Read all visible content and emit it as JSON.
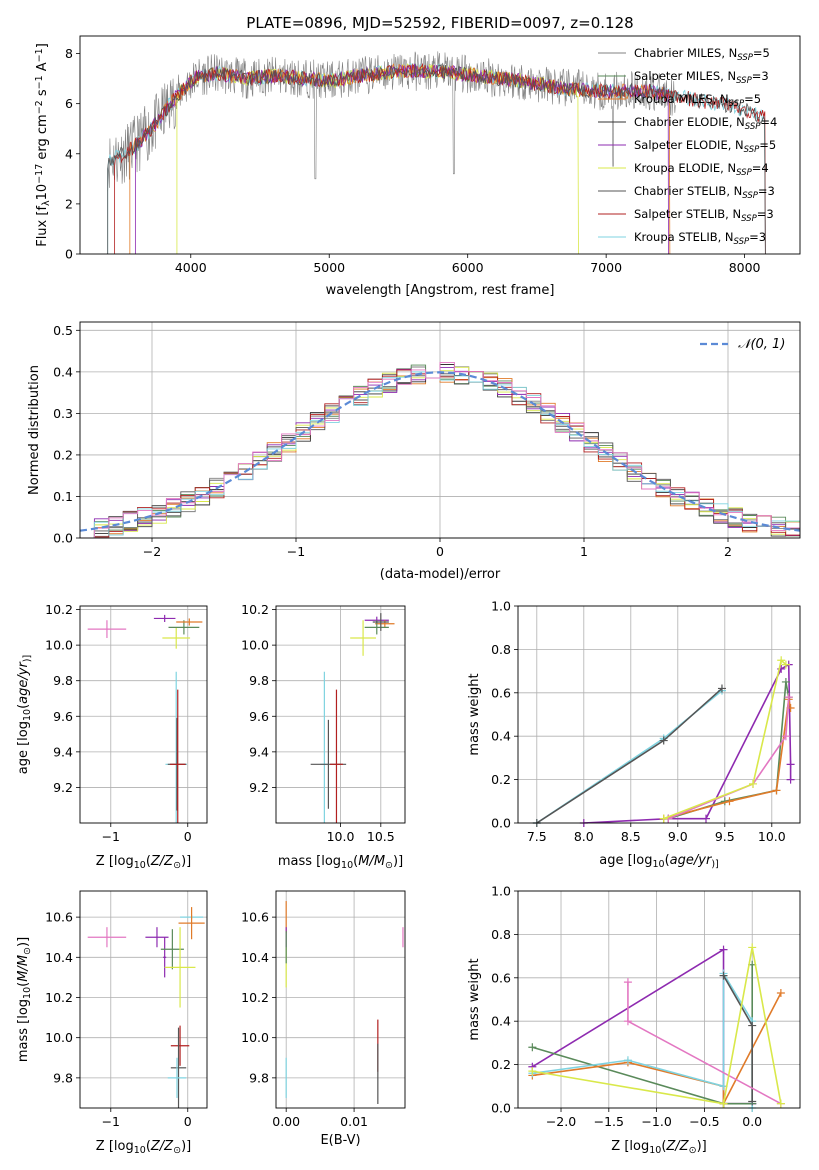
{
  "chart_data": [
    {
      "type": "line",
      "title": "PLATE=0896, MJD=52592, FIBERID=0097, z=0.128",
      "xlabel": "wavelength [Angstrom, rest frame]",
      "ylabel": "Flux [f$_\\lambda$10$^{-17}$ erg cm$^{-2}$ s$^{-1}$ A$^{-1}$]",
      "ylabel_parts": [
        "Flux [f",
        "λ",
        "10",
        "−17",
        " erg cm",
        "−2",
        " s",
        "−1",
        " A",
        "−1",
        "]"
      ],
      "xlim": [
        3200,
        8400
      ],
      "ylim": [
        0,
        8.7
      ],
      "xticks": [
        "4000",
        "5000",
        "6000",
        "7000",
        "8000"
      ],
      "xtick_values": [
        4000,
        5000,
        6000,
        7000,
        8000
      ],
      "yticks": [
        "0",
        "2",
        "4",
        "6",
        "8"
      ],
      "ytick_values": [
        0,
        2,
        4,
        6,
        8
      ],
      "grid": false,
      "legend_position": "right",
      "series": [
        {
          "name": "Chabrier MILES, N$_{SSP}$=5",
          "label": "Chabrier MILES, N",
          "sub": "SSP",
          "tail": "=5",
          "color": "#808080"
        },
        {
          "name": "Salpeter MILES, N$_{SSP}$=3",
          "label": "Salpeter MILES, N",
          "sub": "SSP",
          "tail": "=3",
          "color": "#5a8a5a"
        },
        {
          "name": "Kroupa MILES, N$_{SSP}$=5",
          "label": "Kroupa MILES, N",
          "sub": "SSP",
          "tail": "=5",
          "color": "#e07b2a"
        },
        {
          "name": "Chabrier ELODIE, N$_{SSP}$=4",
          "label": "Chabrier ELODIE, N",
          "sub": "SSP",
          "tail": "=4",
          "color": "#333333"
        },
        {
          "name": "Salpeter ELODIE, N$_{SSP}$=5",
          "label": "Salpeter ELODIE, N",
          "sub": "SSP",
          "tail": "=5",
          "color": "#8e2bb0"
        },
        {
          "name": "Kroupa ELODIE, N$_{SSP}$=4",
          "label": "Kroupa ELODIE, N",
          "sub": "SSP",
          "tail": "=4",
          "color": "#d9e84a"
        },
        {
          "name": "Chabrier STELIB, N$_{SSP}$=3",
          "label": "Chabrier STELIB, N",
          "sub": "SSP",
          "tail": "=3",
          "color": "#555555"
        },
        {
          "name": "Salpeter STELIB, N$_{SSP}$=3",
          "label": "Salpeter STELIB, N",
          "sub": "SSP",
          "tail": "=3",
          "color": "#b22020"
        },
        {
          "name": "Kroupa STELIB, N$_{SSP}$=3",
          "label": "Kroupa STELIB, N",
          "sub": "SSP",
          "tail": "=3",
          "color": "#7fd3e0"
        }
      ],
      "spectrum_anchors": {
        "x": [
          3400,
          3550,
          3650,
          3750,
          3850,
          3950,
          4050,
          4200,
          4400,
          4600,
          4850,
          5000,
          5200,
          5500,
          5800,
          6100,
          6400,
          6700,
          7000,
          7300,
          7500,
          7700,
          7900,
          8050,
          8150
        ],
        "y": [
          3.7,
          4.1,
          4.6,
          5.2,
          6.0,
          6.6,
          7.1,
          7.2,
          7.0,
          7.1,
          7.0,
          6.9,
          7.1,
          7.3,
          7.3,
          7.1,
          6.9,
          6.6,
          6.5,
          6.5,
          6.3,
          6.1,
          5.9,
          5.7,
          5.4
        ]
      }
    },
    {
      "type": "line",
      "title": "",
      "xlabel": "(data-model)/error",
      "ylabel": "Normed distribution",
      "xlim": [
        -2.5,
        2.5
      ],
      "ylim": [
        0,
        0.52
      ],
      "xticks": [
        "−2",
        "−1",
        "0",
        "1",
        "2"
      ],
      "xtick_values": [
        -2,
        -1,
        0,
        1,
        2
      ],
      "yticks": [
        "0.0",
        "0.1",
        "0.2",
        "0.3",
        "0.4",
        "0.5"
      ],
      "ytick_values": [
        0,
        0.1,
        0.2,
        0.3,
        0.4,
        0.5
      ],
      "grid": true,
      "legend_position": "top-right",
      "legend": "𝒩(0, 1)",
      "gaussian": {
        "mean": 0,
        "sigma": 1,
        "color": "#5b8ad6"
      },
      "bin_width": 0.1
    },
    {
      "type": "scatter",
      "xlabel": "Z [log$_{10}$(Z/Z$_\\odot$)]",
      "xlabel_parts": [
        "Z [log",
        "10",
        "(",
        "Z/Z",
        "⊙",
        ")]"
      ],
      "ylabel": "age  [log$_{10}$(age/yr)]",
      "ylabel_parts": [
        "age  [log",
        "10",
        "(",
        "age/yr",
        ")]"
      ],
      "xlim": [
        -1.4,
        0.25
      ],
      "ylim": [
        9.0,
        10.22
      ],
      "xticks": [
        "−1",
        "0"
      ],
      "xtick_values": [
        -1,
        0
      ],
      "yticks": [
        "9.2",
        "9.4",
        "9.6",
        "9.8",
        "10.0",
        "10.2"
      ],
      "ytick_values": [
        9.2,
        9.4,
        9.6,
        9.8,
        10.0,
        10.2
      ],
      "grid": true,
      "points": [
        {
          "x": -1.05,
          "y": 10.09,
          "ex": 0.25,
          "ey": 0.05,
          "c": "#e377c2"
        },
        {
          "x": -0.3,
          "y": 10.15,
          "ex": 0.14,
          "ey": 0.02,
          "c": "#8e2bb0"
        },
        {
          "x": -0.15,
          "y": 10.04,
          "ex": 0.18,
          "ey": 0.06,
          "c": "#d9e84a"
        },
        {
          "x": -0.05,
          "y": 10.1,
          "ex": 0.2,
          "ey": 0.04,
          "c": "#5a8a5a"
        },
        {
          "x": 0.02,
          "y": 10.13,
          "ex": 0.17,
          "ey": 0.02,
          "c": "#e07b2a"
        },
        {
          "x": -0.15,
          "y": 9.33,
          "ex": 0.14,
          "ey": 0.52,
          "c": "#7fd3e0"
        },
        {
          "x": -0.14,
          "y": 9.33,
          "ex": 0.12,
          "ey": 0.26,
          "c": "#555555"
        },
        {
          "x": -0.13,
          "y": 9.33,
          "ex": 0.1,
          "ey": 0.42,
          "c": "#b22020"
        }
      ]
    },
    {
      "type": "scatter",
      "xlabel": "mass [log$_{10}$(M/M$_\\odot$)]",
      "xlabel_parts": [
        "mass [log",
        "10",
        "(",
        "M/M",
        "⊙",
        ")]"
      ],
      "ylabel": "",
      "xlim": [
        9.2,
        10.8
      ],
      "ylim": [
        9.0,
        10.22
      ],
      "xticks": [
        "10.0",
        "10.5"
      ],
      "xtick_values": [
        10.0,
        10.5
      ],
      "yticks": [
        "9.2",
        "9.4",
        "9.6",
        "9.8",
        "10.0",
        "10.2"
      ],
      "ytick_values": [
        9.2,
        9.4,
        9.6,
        9.8,
        10.0,
        10.2
      ],
      "grid": true,
      "points": [
        {
          "x": 10.45,
          "y": 10.14,
          "ex": 0.15,
          "ey": 0.02,
          "c": "#8e2bb0"
        },
        {
          "x": 10.55,
          "y": 10.12,
          "ex": 0.12,
          "ey": 0.02,
          "c": "#e07b2a"
        },
        {
          "x": 10.45,
          "y": 10.1,
          "ex": 0.15,
          "ey": 0.04,
          "c": "#5a8a5a"
        },
        {
          "x": 10.28,
          "y": 10.04,
          "ex": 0.16,
          "ey": 0.1,
          "c": "#d9e84a"
        },
        {
          "x": 10.5,
          "y": 10.13,
          "ex": 0.1,
          "ey": 0.05,
          "c": "#555555"
        },
        {
          "x": 9.8,
          "y": 9.33,
          "ex": 0.05,
          "ey": 0.52,
          "c": "#7fd3e0"
        },
        {
          "x": 9.85,
          "y": 9.33,
          "ex": 0.22,
          "ey": 0.25,
          "c": "#555555"
        },
        {
          "x": 9.95,
          "y": 9.33,
          "ex": 0.08,
          "ey": 0.42,
          "c": "#b22020"
        }
      ]
    },
    {
      "type": "line",
      "xlabel": "age  [log$_{10}$(age/yr)]",
      "xlabel_parts": [
        "age  [log",
        "10",
        "(",
        "age/yr",
        ")]"
      ],
      "ylabel": "mass weight",
      "xlim": [
        7.3,
        10.3
      ],
      "ylim": [
        0,
        1.0
      ],
      "xticks": [
        "7.5",
        "8.0",
        "8.5",
        "9.0",
        "9.5",
        "10.0"
      ],
      "xtick_values": [
        7.5,
        8.0,
        8.5,
        9.0,
        9.5,
        10.0
      ],
      "yticks": [
        "0.0",
        "0.2",
        "0.4",
        "0.6",
        "0.8",
        "1.0"
      ],
      "ytick_values": [
        0,
        0.2,
        0.4,
        0.6,
        0.8,
        1.0
      ],
      "grid": true,
      "series": [
        {
          "color": "#7fd3e0",
          "x": [
            7.5,
            8.85,
            9.47
          ],
          "y": [
            0.0,
            0.39,
            0.61
          ]
        },
        {
          "color": "#555555",
          "x": [
            7.5,
            8.85,
            9.47
          ],
          "y": [
            0.0,
            0.38,
            0.62
          ]
        },
        {
          "color": "#8e2bb0",
          "x": [
            8.0,
            8.9,
            9.3,
            10.1,
            10.18,
            10.2,
            10.2
          ],
          "y": [
            0.0,
            0.02,
            0.02,
            0.71,
            0.73,
            0.27,
            0.2
          ]
        },
        {
          "color": "#5a8a5a",
          "x": [
            8.9,
            9.5,
            10.05,
            10.15,
            10.18
          ],
          "y": [
            0.02,
            0.1,
            0.15,
            0.65,
            0.58
          ]
        },
        {
          "color": "#e07b2a",
          "x": [
            8.85,
            9.55,
            10.05,
            10.18,
            10.2
          ],
          "y": [
            0.02,
            0.1,
            0.15,
            0.57,
            0.53
          ]
        },
        {
          "color": "#e377c2",
          "x": [
            8.9,
            9.8,
            10.15,
            10.18
          ],
          "y": [
            0.02,
            0.18,
            0.4,
            0.58
          ]
        },
        {
          "color": "#d9e84a",
          "x": [
            8.85,
            9.8,
            10.1,
            10.15
          ],
          "y": [
            0.02,
            0.18,
            0.75,
            0.73
          ]
        }
      ]
    },
    {
      "type": "scatter",
      "xlabel": "Z [log$_{10}$(Z/Z$_\\odot$)]",
      "xlabel_parts": [
        "Z [log",
        "10",
        "(",
        "Z/Z",
        "⊙",
        ")]"
      ],
      "ylabel": "mass [log$_{10}$(M/M$_\\odot$)]",
      "ylabel_parts": [
        "mass [log",
        "10",
        "(",
        "M/M",
        "⊙",
        ")]"
      ],
      "xlim": [
        -1.4,
        0.25
      ],
      "ylim": [
        9.65,
        10.73
      ],
      "xticks": [
        "−1",
        "0"
      ],
      "xtick_values": [
        -1,
        0
      ],
      "yticks": [
        "9.8",
        "10.0",
        "10.2",
        "10.4",
        "10.6"
      ],
      "ytick_values": [
        9.8,
        10.0,
        10.2,
        10.4,
        10.6
      ],
      "grid": true,
      "points": [
        {
          "x": -1.05,
          "y": 10.5,
          "ex": 0.25,
          "ey": 0.05,
          "c": "#e377c2"
        },
        {
          "x": -0.4,
          "y": 10.5,
          "ex": 0.15,
          "ey": 0.05,
          "c": "#8e2bb0"
        },
        {
          "x": -0.3,
          "y": 10.4,
          "ex": 0.02,
          "ey": 0.1,
          "c": "#8e2bb0"
        },
        {
          "x": -0.2,
          "y": 10.44,
          "ex": 0.15,
          "ey": 0.1,
          "c": "#5a8a5a"
        },
        {
          "x": -0.1,
          "y": 10.35,
          "ex": 0.2,
          "ey": 0.2,
          "c": "#d9e84a"
        },
        {
          "x": 0.05,
          "y": 10.6,
          "ex": 0.15,
          "ey": 0.01,
          "c": "#7fd3e0"
        },
        {
          "x": 0.05,
          "y": 10.57,
          "ex": 0.17,
          "ey": 0.08,
          "c": "#e07b2a"
        },
        {
          "x": -0.1,
          "y": 9.96,
          "ex": 0.12,
          "ey": 0.1,
          "c": "#b22020"
        },
        {
          "x": -0.12,
          "y": 9.85,
          "ex": 0.1,
          "ey": 0.2,
          "c": "#555555"
        },
        {
          "x": -0.14,
          "y": 9.8,
          "ex": 0.12,
          "ey": 0.1,
          "c": "#7fd3e0"
        }
      ]
    },
    {
      "type": "scatter",
      "xlabel": "E(B-V)",
      "ylabel": "",
      "xlim": [
        -0.0015,
        0.0175
      ],
      "ylim": [
        9.65,
        10.73
      ],
      "xticks": [
        "0.00",
        "0.01"
      ],
      "xtick_values": [
        0.0,
        0.01
      ],
      "yticks": [
        "9.8",
        "10.0",
        "10.2",
        "10.4",
        "10.6"
      ],
      "ytick_values": [
        9.8,
        10.0,
        10.2,
        10.4,
        10.6
      ],
      "grid": true,
      "points": [
        {
          "x": 0.0,
          "y": 10.6,
          "ex": 0.0,
          "ey": 0.08,
          "c": "#e07b2a"
        },
        {
          "x": 0.0,
          "y": 10.5,
          "ex": 0.0,
          "ey": 0.05,
          "c": "#8e2bb0"
        },
        {
          "x": 0.0,
          "y": 10.35,
          "ex": 0.0,
          "ey": 0.1,
          "c": "#d9e84a"
        },
        {
          "x": 0.0,
          "y": 9.8,
          "ex": 0.0,
          "ey": 0.1,
          "c": "#7fd3e0"
        },
        {
          "x": 0.0,
          "y": 10.45,
          "ex": 0.0,
          "ey": 0.08,
          "c": "#5a8a5a"
        },
        {
          "x": 0.0135,
          "y": 9.96,
          "ex": 0.0,
          "ey": 0.13,
          "c": "#b22020"
        },
        {
          "x": 0.0135,
          "y": 9.82,
          "ex": 0.0,
          "ey": 0.15,
          "c": "#555555"
        },
        {
          "x": 0.0172,
          "y": 10.5,
          "ex": 0.0,
          "ey": 0.05,
          "c": "#e377c2"
        }
      ]
    },
    {
      "type": "line",
      "xlabel": "Z [log$_{10}$(Z/Z$_\\odot$)]",
      "xlabel_parts": [
        "Z [log",
        "10",
        "(",
        "Z/Z",
        "⊙",
        ")]"
      ],
      "ylabel": "mass weight",
      "xlim": [
        -2.45,
        0.5
      ],
      "ylim": [
        0,
        1.0
      ],
      "xticks": [
        "−2.0",
        "−1.5",
        "−1.0",
        "−0.5",
        "0.0"
      ],
      "xtick_values": [
        -2.0,
        -1.5,
        -1.0,
        -0.5,
        0.0
      ],
      "yticks": [
        "0.0",
        "0.2",
        "0.4",
        "0.6",
        "0.8",
        "1.0"
      ],
      "ytick_values": [
        0,
        0.2,
        0.4,
        0.6,
        0.8,
        1.0
      ],
      "grid": true,
      "series": [
        {
          "color": "#8e2bb0",
          "x": [
            -2.3,
            -0.3,
            -0.3,
            0.0,
            0.0
          ],
          "y": [
            0.19,
            0.73,
            0.02,
            0.02,
            0.02
          ]
        },
        {
          "color": "#5a8a5a",
          "x": [
            -2.3,
            -0.3,
            -0.3,
            0.0,
            0.0
          ],
          "y": [
            0.28,
            0.02,
            0.02,
            0.02,
            0.66
          ]
        },
        {
          "color": "#e07b2a",
          "x": [
            -2.3,
            -1.3,
            -0.3,
            -0.3,
            0.3
          ],
          "y": [
            0.15,
            0.21,
            0.1,
            0.02,
            0.53
          ]
        },
        {
          "color": "#7fd3e0",
          "x": [
            -2.3,
            -1.3,
            -0.3,
            -0.3,
            0.0,
            0.0
          ],
          "y": [
            0.16,
            0.22,
            0.1,
            0.62,
            0.4,
            0.0
          ]
        },
        {
          "color": "#555555",
          "x": [
            -0.3,
            0.0,
            0.0
          ],
          "y": [
            0.61,
            0.38,
            0.03
          ]
        },
        {
          "color": "#e377c2",
          "x": [
            -1.3,
            -1.3,
            0.3
          ],
          "y": [
            0.58,
            0.4,
            0.02
          ]
        },
        {
          "color": "#d9e84a",
          "x": [
            -2.3,
            -0.3,
            0.0,
            0.3
          ],
          "y": [
            0.17,
            0.02,
            0.74,
            0.02
          ]
        }
      ]
    }
  ]
}
